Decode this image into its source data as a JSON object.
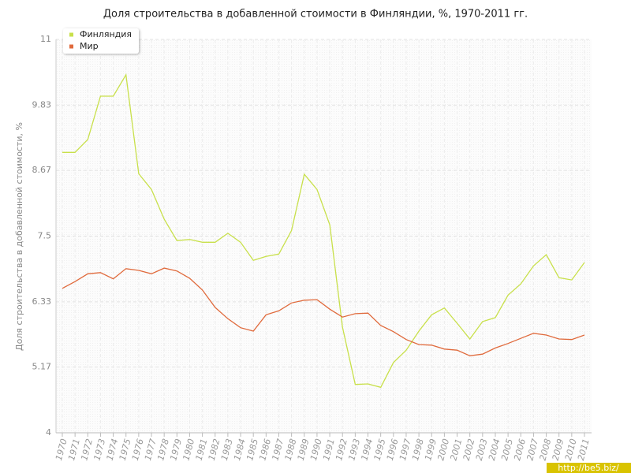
{
  "chart_data": {
    "type": "line",
    "title": "Доля строительства в добавленной стоимости в Финляндии, %, 1970-2011 гг.",
    "y_label": "Доля строительства в добавленной стоимости, %",
    "categories": [
      "1970",
      "1971",
      "1972",
      "1973",
      "1974",
      "1975",
      "1976",
      "1977",
      "1978",
      "1979",
      "1980",
      "1981",
      "1982",
      "1983",
      "1984",
      "1985",
      "1986",
      "1987",
      "1988",
      "1989",
      "1990",
      "1991",
      "1992",
      "1993",
      "1994",
      "1995",
      "1996",
      "1997",
      "1998",
      "1999",
      "2000",
      "2001",
      "2002",
      "2003",
      "2004",
      "2005",
      "2006",
      "2007",
      "2008",
      "2009",
      "2010",
      "2011"
    ],
    "series": [
      {
        "name": "Финляндия",
        "color": "#c8e04a",
        "values": [
          8.99,
          8.99,
          9.22,
          9.99,
          9.99,
          10.37,
          8.61,
          8.33,
          7.8,
          7.42,
          7.44,
          7.39,
          7.39,
          7.55,
          7.39,
          7.07,
          7.14,
          7.18,
          7.6,
          8.6,
          8.33,
          7.7,
          5.88,
          4.86,
          4.87,
          4.81,
          5.25,
          5.47,
          5.81,
          6.1,
          6.22,
          5.95,
          5.67,
          5.98,
          6.05,
          6.45,
          6.65,
          6.97,
          7.17,
          6.76,
          6.72,
          7.03
        ]
      },
      {
        "name": "Мир",
        "color": "#e06a3c",
        "values": [
          6.57,
          6.69,
          6.83,
          6.85,
          6.74,
          6.92,
          6.89,
          6.83,
          6.93,
          6.88,
          6.75,
          6.54,
          6.23,
          6.03,
          5.87,
          5.81,
          6.1,
          6.17,
          6.31,
          6.36,
          6.37,
          6.2,
          6.06,
          6.12,
          6.13,
          5.91,
          5.8,
          5.66,
          5.57,
          5.56,
          5.49,
          5.47,
          5.37,
          5.4,
          5.51,
          5.59,
          5.68,
          5.77,
          5.74,
          5.67,
          5.66,
          5.74
        ]
      }
    ],
    "ylim": [
      4,
      11
    ],
    "yticks": [
      4,
      5.17,
      6.33,
      7.5,
      8.67,
      9.83,
      11
    ],
    "grid": true,
    "legend": "top-left"
  },
  "watermark": "http://be5.biz/"
}
